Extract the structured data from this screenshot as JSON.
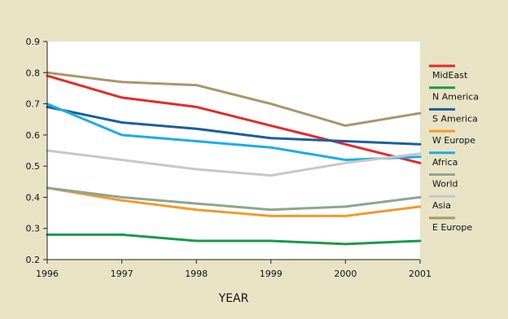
{
  "chart_data": {
    "type": "line",
    "title": "",
    "xlabel": "YEAR",
    "ylabel": "",
    "x": [
      "1996",
      "1997",
      "1998",
      "1999",
      "2000",
      "2001"
    ],
    "ylim": [
      0.2,
      0.9
    ],
    "yticks": [
      "0.2",
      "0.3",
      "0.4",
      "0.5",
      "0.6",
      "0.7",
      "0.8",
      "0.9"
    ],
    "grid": false,
    "legend_position": "right",
    "series": [
      {
        "name": "MidEast",
        "color": "#e32a2a",
        "values": [
          0.79,
          0.72,
          0.69,
          0.63,
          0.57,
          0.51
        ]
      },
      {
        "name": "N America",
        "color": "#1a9a4b",
        "values": [
          0.28,
          0.28,
          0.26,
          0.26,
          0.25,
          0.26
        ]
      },
      {
        "name": "S America",
        "color": "#1b5f9e",
        "values": [
          0.69,
          0.64,
          0.62,
          0.59,
          0.58,
          0.57
        ]
      },
      {
        "name": "W Europe",
        "color": "#f39a2b",
        "values": [
          0.43,
          0.39,
          0.36,
          0.34,
          0.34,
          0.37
        ]
      },
      {
        "name": "Africa",
        "color": "#1aaee5",
        "values": [
          0.7,
          0.6,
          0.58,
          0.56,
          0.52,
          0.53
        ]
      },
      {
        "name": "World",
        "color": "#8aa78e",
        "values": [
          0.43,
          0.4,
          0.38,
          0.36,
          0.37,
          0.4
        ]
      },
      {
        "name": "Asia",
        "color": "#c8c8c8",
        "values": [
          0.55,
          0.52,
          0.49,
          0.47,
          0.51,
          0.54
        ]
      },
      {
        "name": "E Europe",
        "color": "#a99669",
        "values": [
          0.8,
          0.77,
          0.76,
          0.7,
          0.63,
          0.67
        ]
      }
    ]
  }
}
